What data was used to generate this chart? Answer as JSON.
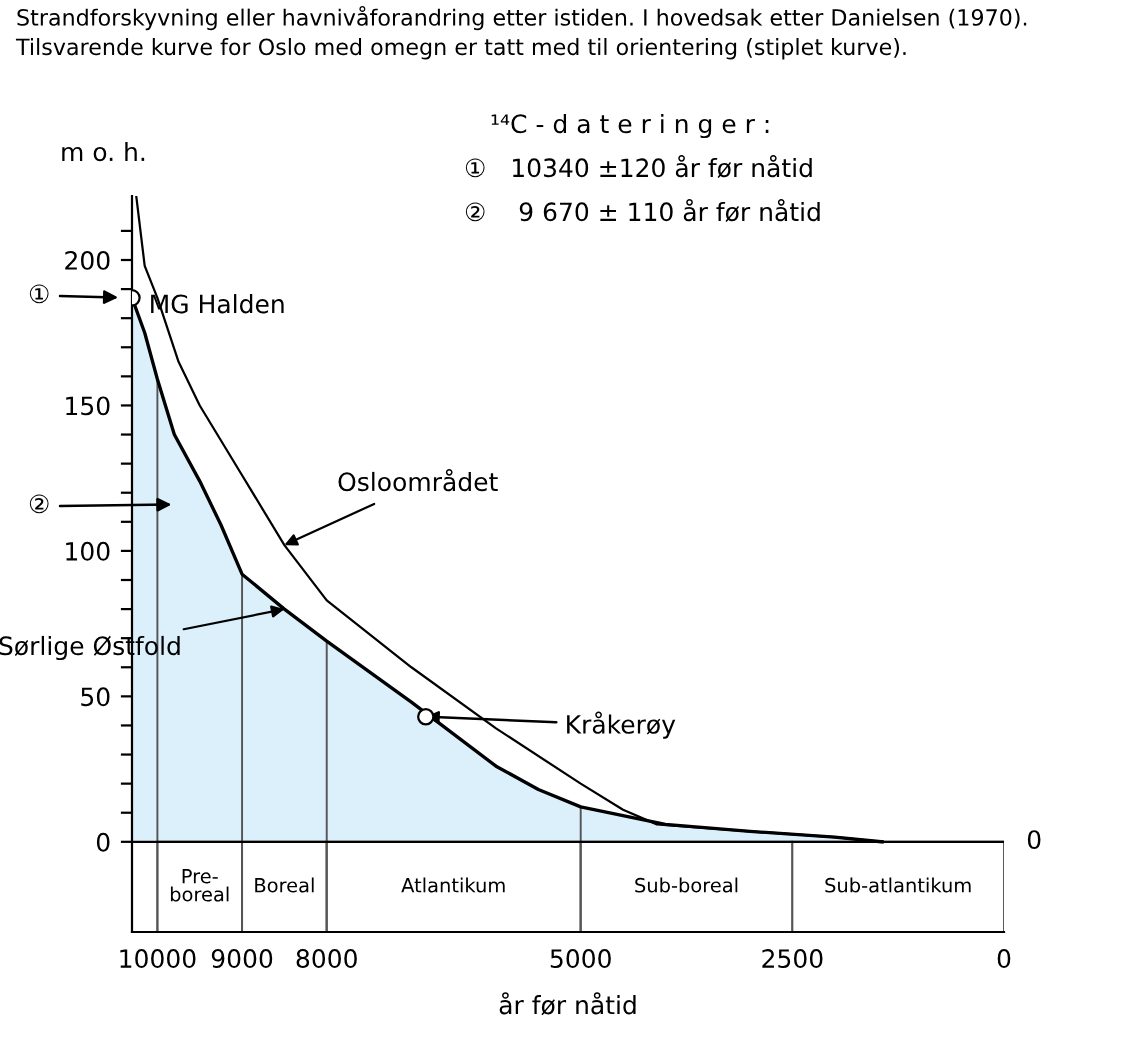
{
  "chart_data": {
    "type": "line",
    "title": "Strandforskyvning eller havnivåforandring etter istiden. I hovedsak etter Danielsen (1970).",
    "subtitle": "Tilsvarende kurve for Oslo med omegn er tatt med til orientering (stiplet kurve).",
    "xlabel": "år før nåtid",
    "ylabel": "m o. h.",
    "series": [
      {
        "name": "Sørlige Østfold",
        "type": "area",
        "color": "#dcf0fc",
        "x": [
          10300,
          10150,
          10000,
          9800,
          9500,
          9250,
          9000,
          8500,
          8000,
          7000,
          6000,
          5500,
          5000,
          4000,
          3000,
          2000,
          1440
        ],
        "values": [
          187,
          175,
          159,
          140,
          124,
          109,
          92,
          80,
          69,
          48,
          26,
          18,
          12,
          6,
          3.6,
          1.6,
          0
        ]
      },
      {
        "name": "Osloområdet",
        "color": "#000000",
        "x": [
          10250,
          10150,
          10000,
          9750,
          9500,
          9000,
          8500,
          8000,
          7000,
          6000,
          5000,
          4500,
          4100,
          3000,
          2000,
          1440
        ],
        "values": [
          222,
          198,
          187,
          165,
          150,
          126,
          102,
          83,
          60,
          39,
          20,
          11,
          6,
          3.6,
          1.6,
          0
        ]
      },
      {
        "type": "scatter",
        "color": "#000000",
        "marker": "circle",
        "x": [
          10300,
          6830
        ],
        "values": [
          187,
          43
        ]
      }
    ],
    "xlim": [
      10300,
      0
    ],
    "xticks": [
      10000,
      9000,
      8000,
      5000,
      2500,
      0
    ],
    "ylim": [
      -31,
      222
    ],
    "yticks": [
      0,
      {
        "value": 10,
        "label": null
      },
      {
        "value": 20,
        "label": null
      },
      {
        "value": 30,
        "label": null
      },
      {
        "value": 40,
        "label": null
      },
      50,
      {
        "value": 60,
        "label": null
      },
      {
        "value": 70,
        "label": null
      },
      {
        "value": 80,
        "label": null
      },
      {
        "value": 90,
        "label": null
      },
      100,
      {
        "value": 110,
        "label": null
      },
      {
        "value": 120,
        "label": null
      },
      {
        "value": 130,
        "label": null
      },
      {
        "value": 140,
        "label": null
      },
      150,
      {
        "value": 160,
        "label": null
      },
      {
        "value": 170,
        "label": null
      },
      {
        "value": 180,
        "label": null
      },
      {
        "value": 190,
        "label": null
      },
      200,
      {
        "value": 210,
        "label": null
      }
    ],
    "bands": [
      {
        "axis": "x",
        "from": 10000,
        "to": 9000,
        "label": "Pre-\nboreal",
        "color": "#ffffff"
      },
      {
        "axis": "x",
        "from": 9000,
        "to": 8000,
        "label": "Boreal",
        "color": "#ffffff"
      },
      {
        "axis": "x",
        "from": 8000,
        "to": 5000,
        "label": "Atlantikum",
        "color": "#ffffff"
      },
      {
        "axis": "x",
        "from": 5000,
        "to": 2500,
        "label": "Sub-boreal",
        "color": "#ffffff"
      },
      {
        "axis": "x",
        "from": 2500,
        "to": 0,
        "label": "Sub-atlantikum",
        "color": "#ffffff"
      }
    ],
    "annotations": [
      "¹⁴C - d a t e r i n g e r :",
      "①   10340 ±120 år før nåtid",
      "②    9 670 ± 110 år før nåtid",
      "①",
      {
        "text": "MG Halden",
        "x": 10300,
        "y": 187
      },
      "②",
      {
        "text": "Kråkerøy",
        "x": 6830,
        "y": 43
      }
    ],
    "ref_lines": [
      {
        "axis": "y",
        "value": 0,
        "label": "0"
      },
      {
        "axis": "x",
        "value": 10000
      },
      {
        "axis": "x",
        "value": 9000
      },
      {
        "axis": "x",
        "value": 8000
      },
      {
        "axis": "x",
        "value": 5000
      }
    ],
    "grid": false,
    "legend": false
  }
}
